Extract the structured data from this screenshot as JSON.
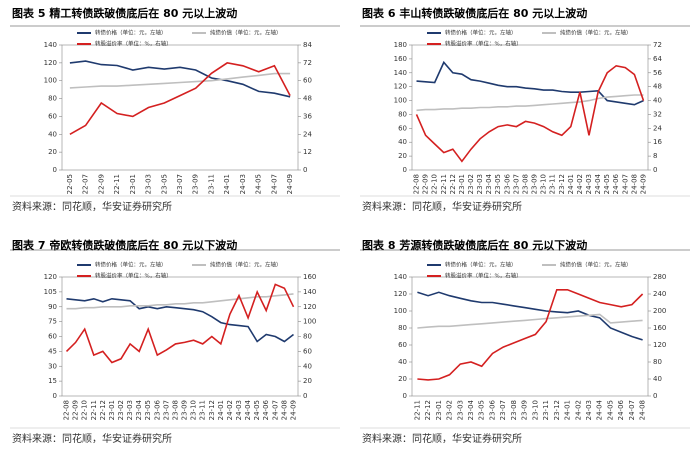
{
  "chart_data": [
    {
      "type": "line",
      "title": "图表 5 精工转债跌破债底后在 80 元以上波动",
      "source": "资料来源：同花顺，华安证券研究所",
      "categories": [
        "22-05",
        "22-07",
        "22-09",
        "22-11",
        "23-01",
        "23-03",
        "23-05",
        "23-07",
        "23-09",
        "23-11",
        "24-01",
        "24-03",
        "24-05",
        "24-07",
        "24-09"
      ],
      "ylim": [
        0,
        140
      ],
      "yticks": [
        0,
        20,
        40,
        60,
        80,
        100,
        120,
        140
      ],
      "y2lim": [
        0,
        84
      ],
      "y2ticks": [
        0,
        12,
        24,
        36,
        48,
        60,
        72,
        84
      ],
      "series": [
        {
          "name": "转债价格（单位：元，左轴）",
          "color": "#1f3a6e",
          "values": [
            120,
            122,
            118,
            117,
            112,
            115,
            113,
            115,
            112,
            103,
            100,
            96,
            88,
            86,
            82
          ]
        },
        {
          "name": "纯债价值（单位：元，左轴）",
          "color": "#bfbfbf",
          "values": [
            92,
            93,
            94,
            94,
            95,
            96,
            97,
            98,
            99,
            100,
            102,
            104,
            106,
            108,
            108
          ]
        },
        {
          "name": "转股溢价率（单位：%，右轴）",
          "color": "#d42020",
          "axis": "y2",
          "values": [
            24,
            30,
            45,
            38,
            36,
            42,
            45,
            50,
            55,
            65,
            72,
            70,
            66,
            70,
            50
          ]
        }
      ]
    },
    {
      "type": "line",
      "title": "图表 6 丰山转债跌破债底后在 80 元以上波动",
      "source": "资料来源：同花顺，华安证券研究所",
      "categories": [
        "22-08",
        "22-09",
        "22-10",
        "22-11",
        "22-12",
        "23-01",
        "23-02",
        "23-03",
        "23-04",
        "23-05",
        "23-06",
        "23-07",
        "23-08",
        "23-09",
        "23-10",
        "23-11",
        "23-12",
        "24-01",
        "24-02",
        "24-03",
        "24-04",
        "24-05",
        "24-06",
        "24-07",
        "24-08",
        "24-09"
      ],
      "ylim": [
        0,
        180
      ],
      "yticks": [
        0,
        20,
        40,
        60,
        80,
        100,
        120,
        140,
        160,
        180
      ],
      "y2lim": [
        0,
        72
      ],
      "y2ticks": [
        0,
        8,
        16,
        24,
        32,
        40,
        48,
        56,
        64,
        72
      ],
      "series": [
        {
          "name": "转债价格（单位：元，左轴）",
          "color": "#1f3a6e",
          "values": [
            128,
            127,
            126,
            155,
            140,
            138,
            130,
            128,
            125,
            122,
            120,
            120,
            118,
            117,
            115,
            115,
            113,
            112,
            112,
            113,
            114,
            100,
            98,
            96,
            94,
            100
          ]
        },
        {
          "name": "纯债价值（单位：元，左轴）",
          "color": "#bfbfbf",
          "values": [
            86,
            87,
            87,
            88,
            88,
            89,
            89,
            90,
            90,
            91,
            91,
            92,
            92,
            93,
            94,
            95,
            96,
            97,
            98,
            100,
            103,
            105,
            106,
            107,
            108,
            108
          ]
        },
        {
          "name": "转股溢价率（单位：%，右轴）",
          "color": "#d42020",
          "axis": "y2",
          "values": [
            32,
            20,
            15,
            10,
            12,
            5,
            12,
            18,
            22,
            25,
            26,
            25,
            28,
            27,
            25,
            22,
            20,
            25,
            45,
            20,
            45,
            56,
            60,
            59,
            55,
            40
          ]
        }
      ]
    },
    {
      "type": "line",
      "title": "图表 7 帝欧转债跌破债底后在 80 元以下波动",
      "source": "资料来源：同花顺，华安证券研究所",
      "categories": [
        "22-08",
        "22-09",
        "22-10",
        "22-11",
        "22-12",
        "23-01",
        "23-02",
        "23-03",
        "23-04",
        "23-05",
        "23-06",
        "23-07",
        "23-08",
        "23-09",
        "23-10",
        "23-11",
        "23-12",
        "24-01",
        "24-02",
        "24-03",
        "24-04",
        "24-05",
        "24-06",
        "24-07",
        "24-08",
        "24-09"
      ],
      "ylim": [
        0,
        120
      ],
      "yticks": [
        0,
        15,
        30,
        45,
        60,
        75,
        90,
        105,
        120
      ],
      "y2lim": [
        0,
        160
      ],
      "y2ticks": [
        0,
        20,
        40,
        60,
        80,
        100,
        120,
        140,
        160
      ],
      "series": [
        {
          "name": "转债价格（单位：元，左轴）",
          "color": "#1f3a6e",
          "values": [
            98,
            97,
            96,
            98,
            95,
            98,
            97,
            96,
            88,
            90,
            88,
            90,
            89,
            88,
            87,
            85,
            80,
            74,
            72,
            71,
            70,
            55,
            62,
            60,
            55,
            62
          ]
        },
        {
          "name": "纯债价值（单位：元，左轴）",
          "color": "#bfbfbf",
          "values": [
            88,
            88,
            89,
            89,
            90,
            90,
            90,
            91,
            91,
            91,
            92,
            92,
            93,
            93,
            94,
            94,
            95,
            96,
            97,
            98,
            99,
            100,
            100,
            101,
            102,
            103
          ]
        },
        {
          "name": "转股溢价率（单位：%，右轴）",
          "color": "#d42020",
          "axis": "y2",
          "values": [
            60,
            72,
            90,
            55,
            60,
            45,
            50,
            70,
            60,
            90,
            55,
            62,
            70,
            72,
            75,
            70,
            80,
            70,
            110,
            135,
            105,
            140,
            115,
            150,
            145,
            120
          ]
        }
      ]
    },
    {
      "type": "line",
      "title": "图表 8 芳源转债跌破债底后在 80 元以下波动",
      "source": "资料来源：同花顺，华安证券研究所",
      "categories": [
        "22-11",
        "22-12",
        "23-01",
        "23-02",
        "23-03",
        "23-04",
        "23-05",
        "23-06",
        "23-07",
        "23-08",
        "23-09",
        "23-10",
        "23-11",
        "23-12",
        "24-01",
        "24-02",
        "24-03",
        "24-04",
        "24-05",
        "24-06",
        "24-07",
        "24-08"
      ],
      "ylim": [
        0,
        140
      ],
      "yticks": [
        0,
        20,
        40,
        60,
        80,
        100,
        120,
        140
      ],
      "y2lim": [
        0,
        280
      ],
      "y2ticks": [
        0,
        40,
        80,
        120,
        160,
        200,
        240,
        280
      ],
      "series": [
        {
          "name": "转债价格（单位：元，左轴）",
          "color": "#1f3a6e",
          "values": [
            122,
            118,
            122,
            118,
            115,
            112,
            110,
            110,
            108,
            106,
            104,
            102,
            100,
            99,
            98,
            100,
            95,
            92,
            80,
            75,
            70,
            66
          ]
        },
        {
          "name": "纯债价值（单位：元，左轴）",
          "color": "#bfbfbf",
          "values": [
            80,
            81,
            82,
            82,
            83,
            84,
            85,
            86,
            87,
            88,
            89,
            90,
            91,
            92,
            93,
            94,
            95,
            96,
            86,
            87,
            88,
            89
          ]
        },
        {
          "name": "转股溢价率（单位：%，右轴）",
          "color": "#d42020",
          "axis": "y2",
          "values": [
            40,
            38,
            40,
            50,
            75,
            80,
            70,
            100,
            115,
            125,
            135,
            145,
            175,
            250,
            250,
            240,
            230,
            220,
            215,
            210,
            215,
            240
          ]
        }
      ]
    }
  ]
}
